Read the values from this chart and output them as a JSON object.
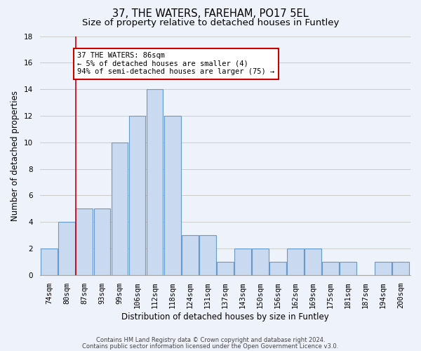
{
  "title": "37, THE WATERS, FAREHAM, PO17 5EL",
  "subtitle": "Size of property relative to detached houses in Funtley",
  "xlabel": "Distribution of detached houses by size in Funtley",
  "ylabel": "Number of detached properties",
  "categories": [
    "74sqm",
    "80sqm",
    "87sqm",
    "93sqm",
    "99sqm",
    "106sqm",
    "112sqm",
    "118sqm",
    "124sqm",
    "131sqm",
    "137sqm",
    "143sqm",
    "150sqm",
    "156sqm",
    "162sqm",
    "169sqm",
    "175sqm",
    "181sqm",
    "187sqm",
    "194sqm",
    "200sqm"
  ],
  "values": [
    2,
    4,
    5,
    5,
    10,
    12,
    14,
    12,
    3,
    3,
    1,
    2,
    2,
    1,
    2,
    2,
    1,
    1,
    0,
    1,
    1
  ],
  "bar_color": "#c9d9ef",
  "bar_edge_color": "#6699cc",
  "vline_x": 1.5,
  "annotation_text": "37 THE WATERS: 86sqm\n← 5% of detached houses are smaller (4)\n94% of semi-detached houses are larger (75) →",
  "annotation_box_color": "#ffffff",
  "annotation_box_edge_color": "#cc0000",
  "vline_color": "#cc0000",
  "ylim": [
    0,
    18
  ],
  "yticks": [
    0,
    2,
    4,
    6,
    8,
    10,
    12,
    14,
    16,
    18
  ],
  "grid_color": "#cccccc",
  "background_color": "#eef2fa",
  "footer_line1": "Contains HM Land Registry data © Crown copyright and database right 2024.",
  "footer_line2": "Contains public sector information licensed under the Open Government Licence v3.0.",
  "title_fontsize": 10.5,
  "subtitle_fontsize": 9.5,
  "ylabel_fontsize": 8.5,
  "xlabel_fontsize": 8.5,
  "tick_fontsize": 7.5,
  "annotation_fontsize": 7.5,
  "footer_fontsize": 6.0
}
